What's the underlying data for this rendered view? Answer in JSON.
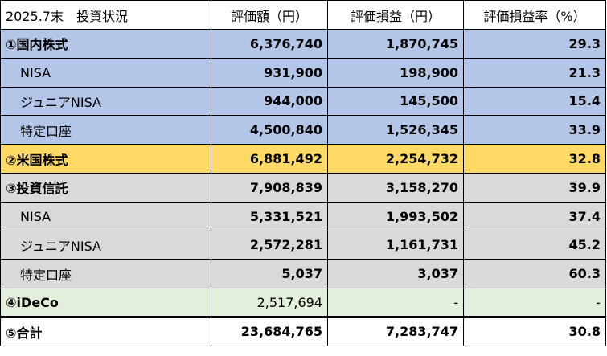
{
  "header": {
    "label": "2025.7末　投資状況",
    "col_value": "評価額（円）",
    "col_gain": "評価損益（円）",
    "col_rate": "評価損益率（%）"
  },
  "rows": [
    {
      "label": "①国内株式",
      "value": "6,376,740",
      "gain": "1,870,745",
      "rate": "29.3"
    },
    {
      "label": "NISA",
      "value": "931,900",
      "gain": "198,900",
      "rate": "21.3"
    },
    {
      "label": "ジュニアNISA",
      "value": "944,000",
      "gain": "145,500",
      "rate": "15.4"
    },
    {
      "label": "特定口座",
      "value": "4,500,840",
      "gain": "1,526,345",
      "rate": "33.9"
    },
    {
      "label": "②米国株式",
      "value": "6,881,492",
      "gain": "2,254,732",
      "rate": "32.8"
    },
    {
      "label": "③投資信託",
      "value": "7,908,839",
      "gain": "3,158,270",
      "rate": "39.9"
    },
    {
      "label": "NISA",
      "value": "5,331,521",
      "gain": "1,993,502",
      "rate": "37.4"
    },
    {
      "label": "ジュニアNISA",
      "value": "2,572,281",
      "gain": "1,161,731",
      "rate": "45.2"
    },
    {
      "label": "特定口座",
      "value": "5,037",
      "gain": "3,037",
      "rate": "60.3"
    },
    {
      "label": "④iDeCo",
      "value": "2,517,694",
      "gain": "-",
      "rate": "-"
    },
    {
      "label": "⑤合計",
      "value": "23,684,765",
      "gain": "7,283,747",
      "rate": "30.8"
    }
  ],
  "colors": {
    "blue": "#b4c6e7",
    "orange": "#ffd966",
    "gray": "#d9d9d9",
    "green": "#e2efda"
  }
}
